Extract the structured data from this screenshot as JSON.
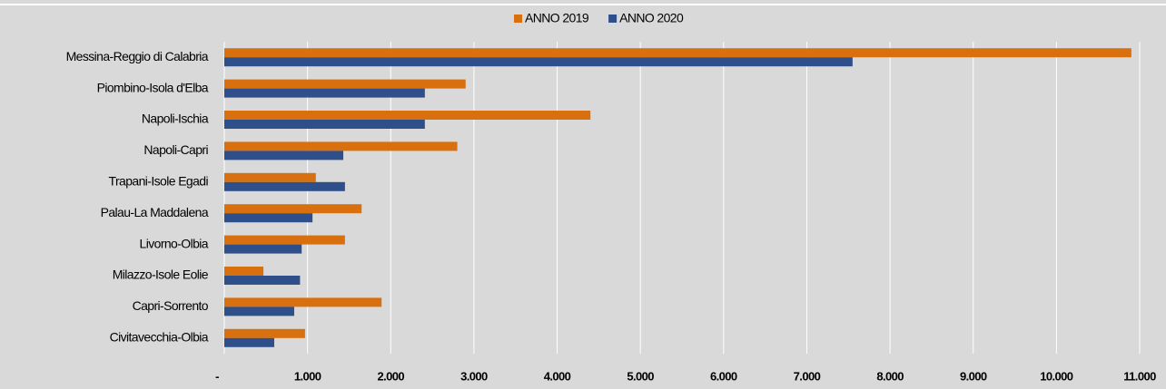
{
  "chart_data": {
    "type": "hbar",
    "categories": [
      "Messina-Reggio di Calabria",
      "Piombino-Isola d'Elba",
      "Napoli-Ischia",
      "Napoli-Capri",
      "Trapani-Isole Egadi",
      "Palau-La Maddalena",
      "Livorno-Olbia",
      "Milazzo-Isole Eolie",
      "Capri-Sorrento",
      "Civitavecchia-Olbia"
    ],
    "series": [
      {
        "name": "ANNO 2019",
        "color": "#d9700f",
        "values": [
          10900,
          2900,
          4400,
          2800,
          1100,
          1650,
          1450,
          470,
          1890,
          970
        ]
      },
      {
        "name": "ANNO 2020",
        "color": "#2f4f8b",
        "values": [
          7550,
          2410,
          2410,
          1430,
          1450,
          1060,
          930,
          910,
          840,
          600
        ]
      }
    ],
    "xlim": [
      0,
      11000
    ],
    "xticks": [
      {
        "value": 0,
        "label": "-"
      },
      {
        "value": 1000,
        "label": "1.000"
      },
      {
        "value": 2000,
        "label": "2.000"
      },
      {
        "value": 3000,
        "label": "3.000"
      },
      {
        "value": 4000,
        "label": "4.000"
      },
      {
        "value": 5000,
        "label": "5.000"
      },
      {
        "value": 6000,
        "label": "6.000"
      },
      {
        "value": 7000,
        "label": "7.000"
      },
      {
        "value": 8000,
        "label": "8.000"
      },
      {
        "value": 9000,
        "label": "9.000"
      },
      {
        "value": 10000,
        "label": "10.000"
      },
      {
        "value": 11000,
        "label": "11.000"
      }
    ],
    "grid": true,
    "legend": "top"
  }
}
